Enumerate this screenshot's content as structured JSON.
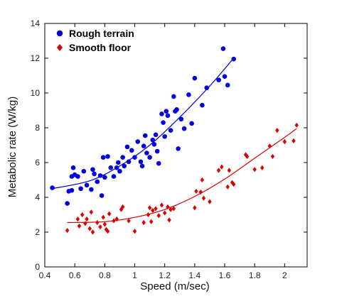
{
  "chart_data": {
    "type": "scatter",
    "xlabel": "Speed (m/sec)",
    "ylabel": "Metabolic rate (W/kg)",
    "xlim": [
      0.4,
      2.15
    ],
    "ylim": [
      0,
      14
    ],
    "xticks": [
      0.4,
      0.6,
      0.8,
      1.0,
      1.2,
      1.4,
      1.6,
      1.8,
      2.0
    ],
    "xtick_labels": [
      "0.4",
      "0.6",
      "0.8",
      "1",
      "1.2",
      "1.4",
      "1.6",
      "1.8",
      "2"
    ],
    "yticks": [
      0,
      2,
      4,
      6,
      8,
      10,
      12,
      14
    ],
    "ytick_labels": [
      "0",
      "2",
      "4",
      "6",
      "8",
      "10",
      "12",
      "14"
    ],
    "grid": false,
    "legend_position": "top-left",
    "series": [
      {
        "name": "Rough terrain",
        "color": "#0000dd",
        "marker": "circle",
        "points": [
          [
            0.45,
            4.55
          ],
          [
            0.55,
            3.65
          ],
          [
            0.56,
            4.35
          ],
          [
            0.58,
            4.4
          ],
          [
            0.58,
            5.2
          ],
          [
            0.59,
            5.7
          ],
          [
            0.6,
            5.3
          ],
          [
            0.62,
            5.2
          ],
          [
            0.64,
            4.5
          ],
          [
            0.66,
            5.5
          ],
          [
            0.68,
            4.7
          ],
          [
            0.71,
            4.45
          ],
          [
            0.72,
            5.6
          ],
          [
            0.73,
            5.35
          ],
          [
            0.75,
            4.9
          ],
          [
            0.77,
            5.25
          ],
          [
            0.78,
            4.1
          ],
          [
            0.79,
            6.3
          ],
          [
            0.8,
            5.15
          ],
          [
            0.82,
            6.35
          ],
          [
            0.84,
            5.7
          ],
          [
            0.86,
            5.2
          ],
          [
            0.88,
            5.7
          ],
          [
            0.89,
            6.0
          ],
          [
            0.9,
            5.5
          ],
          [
            0.92,
            6.3
          ],
          [
            0.93,
            5.8
          ],
          [
            0.95,
            6.9
          ],
          [
            0.96,
            6.05
          ],
          [
            0.98,
            6.7
          ],
          [
            1.0,
            6.3
          ],
          [
            1.02,
            7.2
          ],
          [
            1.04,
            6.05
          ],
          [
            1.05,
            5.8
          ],
          [
            1.06,
            6.95
          ],
          [
            1.07,
            7.55
          ],
          [
            1.08,
            6.55
          ],
          [
            1.1,
            6.3
          ],
          [
            1.12,
            7.3
          ],
          [
            1.13,
            7.05
          ],
          [
            1.14,
            7.6
          ],
          [
            1.15,
            6.65
          ],
          [
            1.16,
            5.95
          ],
          [
            1.18,
            8.8
          ],
          [
            1.19,
            8.3
          ],
          [
            1.2,
            7.5
          ],
          [
            1.21,
            8.95
          ],
          [
            1.22,
            8.7
          ],
          [
            1.24,
            7.85
          ],
          [
            1.26,
            9.8
          ],
          [
            1.27,
            8.95
          ],
          [
            1.28,
            9.05
          ],
          [
            1.29,
            6.8
          ],
          [
            1.31,
            8.5
          ],
          [
            1.33,
            7.95
          ],
          [
            1.36,
            9.9
          ],
          [
            1.38,
            8.25
          ],
          [
            1.4,
            10.85
          ],
          [
            1.45,
            9.3
          ],
          [
            1.48,
            10.3
          ],
          [
            1.56,
            10.75
          ],
          [
            1.59,
            12.55
          ],
          [
            1.6,
            10.95
          ],
          [
            1.62,
            10.45
          ],
          [
            1.66,
            11.95
          ]
        ],
        "fit": [
          [
            0.45,
            4.5
          ],
          [
            0.7,
            4.95
          ],
          [
            0.9,
            5.8
          ],
          [
            1.1,
            7.0
          ],
          [
            1.3,
            8.6
          ],
          [
            1.5,
            10.4
          ],
          [
            1.65,
            11.9
          ]
        ]
      },
      {
        "name": "Smooth floor",
        "color": "#dd0000",
        "marker": "diamond",
        "points": [
          [
            0.55,
            2.1
          ],
          [
            0.62,
            2.75
          ],
          [
            0.63,
            2.35
          ],
          [
            0.65,
            3.0
          ],
          [
            0.67,
            2.5
          ],
          [
            0.68,
            2.75
          ],
          [
            0.7,
            2.2
          ],
          [
            0.71,
            3.15
          ],
          [
            0.72,
            2.0
          ],
          [
            0.75,
            2.55
          ],
          [
            0.77,
            2.3
          ],
          [
            0.79,
            2.85
          ],
          [
            0.8,
            2.45
          ],
          [
            0.81,
            2.15
          ],
          [
            0.82,
            2.05
          ],
          [
            0.83,
            3.05
          ],
          [
            0.86,
            2.65
          ],
          [
            0.88,
            2.75
          ],
          [
            0.91,
            3.3
          ],
          [
            0.92,
            3.45
          ],
          [
            0.96,
            2.65
          ],
          [
            1.0,
            2.05
          ],
          [
            1.06,
            2.55
          ],
          [
            1.09,
            3.0
          ],
          [
            1.1,
            3.4
          ],
          [
            1.11,
            2.6
          ],
          [
            1.12,
            3.25
          ],
          [
            1.14,
            3.35
          ],
          [
            1.16,
            2.95
          ],
          [
            1.18,
            3.55
          ],
          [
            1.2,
            3.1
          ],
          [
            1.22,
            3.45
          ],
          [
            1.23,
            2.7
          ],
          [
            1.24,
            3.3
          ],
          [
            1.26,
            3.35
          ],
          [
            1.4,
            3.4
          ],
          [
            1.41,
            4.35
          ],
          [
            1.44,
            4.3
          ],
          [
            1.45,
            5.0
          ],
          [
            1.46,
            3.95
          ],
          [
            1.5,
            3.75
          ],
          [
            1.56,
            5.55
          ],
          [
            1.58,
            5.75
          ],
          [
            1.62,
            4.6
          ],
          [
            1.63,
            5.55
          ],
          [
            1.65,
            4.85
          ],
          [
            1.66,
            4.75
          ],
          [
            1.74,
            6.45
          ],
          [
            1.75,
            6.35
          ],
          [
            1.8,
            5.6
          ],
          [
            1.85,
            5.7
          ],
          [
            1.9,
            6.95
          ],
          [
            1.92,
            6.35
          ],
          [
            1.95,
            7.85
          ],
          [
            2.0,
            7.2
          ],
          [
            2.06,
            7.25
          ],
          [
            2.08,
            8.15
          ]
        ],
        "fit": [
          [
            0.55,
            2.55
          ],
          [
            0.8,
            2.6
          ],
          [
            1.0,
            2.85
          ],
          [
            1.2,
            3.3
          ],
          [
            1.4,
            4.05
          ],
          [
            1.6,
            5.05
          ],
          [
            1.8,
            6.25
          ],
          [
            2.0,
            7.45
          ],
          [
            2.08,
            7.95
          ]
        ]
      }
    ]
  }
}
